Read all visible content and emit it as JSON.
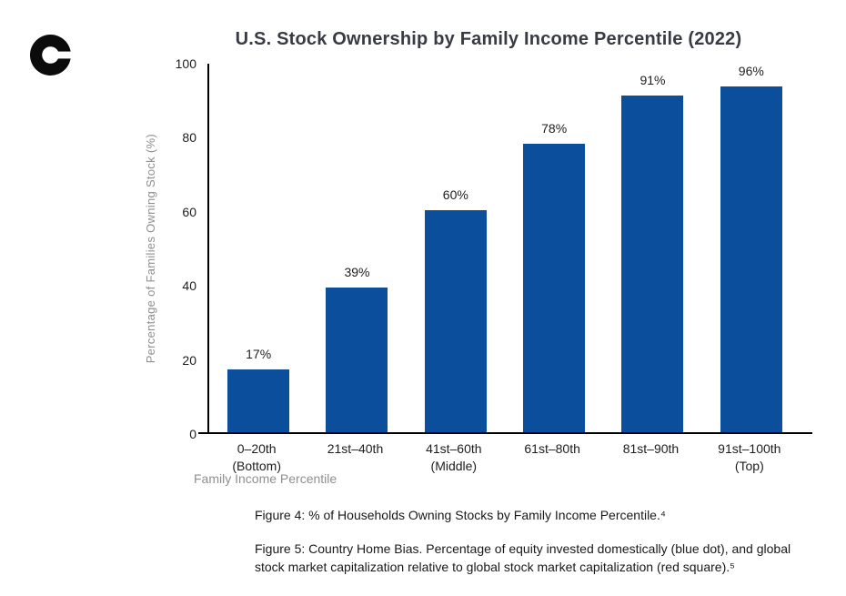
{
  "logo": {
    "name": "c-logo"
  },
  "chart_data": {
    "type": "bar",
    "title": "U.S. Stock Ownership by Family Income Percentile (2022)",
    "categories": [
      "0–20th\n(Bottom)",
      "21st–40th",
      "41st–60th\n(Middle)",
      "61st–80th",
      "81st–90th",
      "91st–100th\n(Top)"
    ],
    "values": [
      17,
      39,
      60,
      78,
      91,
      96
    ],
    "value_labels": [
      "17%",
      "39%",
      "60%",
      "78%",
      "91%",
      "96%"
    ],
    "xlabel": "Family Income Percentile",
    "ylabel": "Percentage of Families Owning Stock (%)",
    "ylim": [
      0,
      100
    ],
    "yticks": [
      0,
      20,
      40,
      60,
      80,
      100
    ],
    "grid": false,
    "legend": "none",
    "bar_color": "#0b4e9b",
    "axis_color": "#000000"
  },
  "captions": {
    "figure4": "Figure 4: % of Households Owning Stocks by Family Income Percentile.⁴",
    "figure5": "Figure 5: Country Home Bias. Percentage of equity invested domestically (blue dot), and global stock market capitalization relative to global stock market capitalization (red square).⁵"
  }
}
